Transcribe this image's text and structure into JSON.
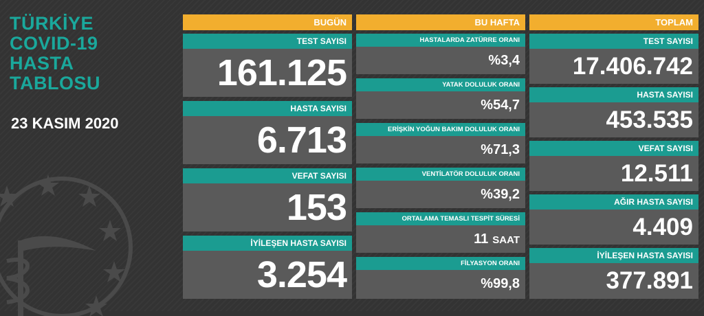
{
  "title_lines": [
    "TÜRKİYE",
    "COVID-19",
    "HASTA",
    "TABLOSU"
  ],
  "date": "23 KASIM 2020",
  "columns": {
    "today": {
      "header": "BUGÜN",
      "items": [
        {
          "label": "TEST SAYISI",
          "value": "161.125"
        },
        {
          "label": "HASTA SAYISI",
          "value": "6.713"
        },
        {
          "label": "VEFAT SAYISI",
          "value": "153"
        },
        {
          "label": "İYİLEŞEN HASTA SAYISI",
          "value": "3.254"
        }
      ]
    },
    "week": {
      "header": "BU HAFTA",
      "items": [
        {
          "label": "HASTALARDA ZATÜRRE ORANI",
          "value": "%3,4"
        },
        {
          "label": "YATAK DOLULUK ORANI",
          "value": "%54,7"
        },
        {
          "label": "ERİŞKİN YOĞUN BAKIM DOLULUK ORANI",
          "value": "%71,3"
        },
        {
          "label": "VENTİLATÖR DOLULUK ORANI",
          "value": "%39,2"
        },
        {
          "label": "ORTALAMA TEMASLI TESPİT SÜRESİ",
          "value": "11",
          "unit": "SAAT"
        },
        {
          "label": "FİLYASYON ORANI",
          "value": "%99,8"
        }
      ]
    },
    "total": {
      "header": "TOPLAM",
      "items": [
        {
          "label": "TEST SAYISI",
          "value": "17.406.742"
        },
        {
          "label": "HASTA SAYISI",
          "value": "453.535"
        },
        {
          "label": "VEFAT SAYISI",
          "value": "12.511"
        },
        {
          "label": "AĞIR HASTA SAYISI",
          "value": "4.409"
        },
        {
          "label": "İYİLEŞEN HASTA SAYISI",
          "value": "377.891"
        }
      ]
    }
  },
  "colors": {
    "background": "#333333",
    "title": "#1aa89c",
    "header": "#f2ae2e",
    "label_bar": "#1b9c91",
    "value_box": "#5a5a5a"
  }
}
